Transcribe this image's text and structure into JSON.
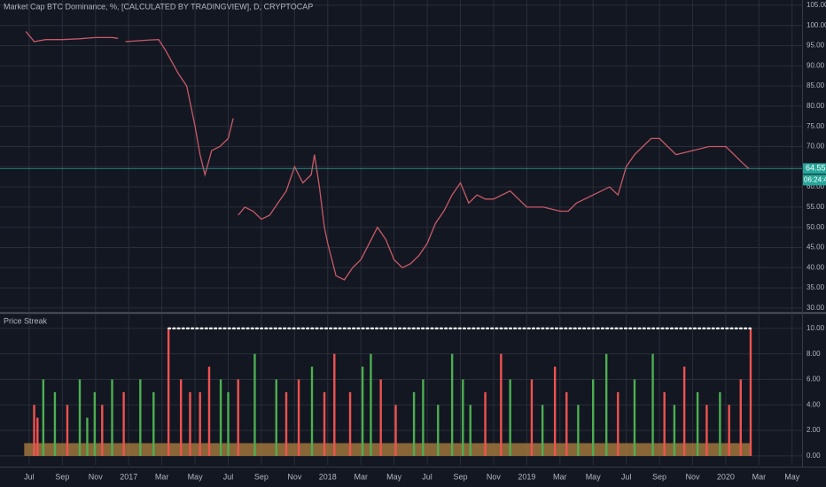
{
  "chart_data": [
    {
      "type": "line",
      "title": "Market Cap BTC Dominance, %, [CALCULATED BY TRADINGVIEW], D, CRYPTOCAP",
      "color": "#c65a66",
      "x": [
        -0.2,
        0.3,
        1,
        2,
        3,
        4,
        5,
        5.35,
        null,
        5.8,
        6.5,
        7.3,
        7.8,
        8.2,
        9,
        9.5,
        10,
        10.3,
        10.6,
        11,
        11.5,
        12,
        12.3,
        null,
        12.6,
        13,
        13.5,
        14,
        14.5,
        15,
        15.5,
        16,
        16.5,
        17,
        17.2,
        17.5,
        17.8,
        18,
        18.5,
        19,
        19.5,
        20,
        20.5,
        21,
        21.5,
        22,
        22.5,
        23,
        23.5,
        24,
        24.5,
        25,
        25.5,
        26,
        26.5,
        27,
        27.5,
        28,
        29,
        30,
        31,
        32,
        32.5,
        33,
        34,
        35,
        35.5,
        36,
        36.5,
        37,
        37.5,
        38,
        38.5,
        39,
        40,
        41,
        42,
        42.5,
        43,
        43.4
      ],
      "values": [
        98.5,
        96,
        96.5,
        96.5,
        96.7,
        97,
        97,
        96.8,
        null,
        96,
        96.2,
        96.4,
        96.5,
        94,
        88,
        85,
        75,
        68,
        63,
        69,
        70,
        72,
        77,
        null,
        53,
        55,
        54,
        52,
        53,
        56,
        59,
        65,
        61,
        63,
        68,
        60,
        50,
        46,
        38,
        37,
        40,
        42,
        46,
        50,
        47,
        42,
        40,
        41,
        43,
        46,
        51,
        54,
        58,
        61,
        56,
        58,
        57,
        57,
        59,
        55,
        55,
        54,
        54,
        56,
        58,
        60,
        58,
        65,
        68,
        70,
        72,
        72,
        70,
        68,
        69,
        70,
        70,
        68,
        66,
        64.5
      ],
      "xlim": [
        -1.76,
        46.6
      ],
      "ylim": [
        29.1,
        106.3
      ],
      "xticks": [
        {
          "value": 0,
          "label": "Jul"
        },
        {
          "value": 2,
          "label": "Sep"
        },
        {
          "value": 4,
          "label": "Nov"
        },
        {
          "value": 6,
          "label": "2017"
        },
        {
          "value": 8,
          "label": "Mar"
        },
        {
          "value": 10,
          "label": "May"
        },
        {
          "value": 12,
          "label": "Jul"
        },
        {
          "value": 14,
          "label": "Sep"
        },
        {
          "value": 16,
          "label": "Nov"
        },
        {
          "value": 18,
          "label": "2018"
        },
        {
          "value": 20,
          "label": "Mar"
        },
        {
          "value": 22,
          "label": "May"
        },
        {
          "value": 24,
          "label": "Jul"
        },
        {
          "value": 26,
          "label": "Sep"
        },
        {
          "value": 28,
          "label": "Nov"
        },
        {
          "value": 30,
          "label": "2019"
        },
        {
          "value": 32,
          "label": "Mar"
        },
        {
          "value": 34,
          "label": "May"
        },
        {
          "value": 36,
          "label": "Jul"
        },
        {
          "value": 38,
          "label": "Sep"
        },
        {
          "value": 40,
          "label": "Nov"
        },
        {
          "value": 42,
          "label": "2020"
        },
        {
          "value": 44,
          "label": "Mar"
        },
        {
          "value": 46,
          "label": "May"
        }
      ],
      "yticks": [
        {
          "value": 30,
          "label": "30.00"
        },
        {
          "value": 35,
          "label": "35.00"
        },
        {
          "value": 40,
          "label": "40.00"
        },
        {
          "value": 45,
          "label": "45.00"
        },
        {
          "value": 50,
          "label": "50.00"
        },
        {
          "value": 55,
          "label": "55.00"
        },
        {
          "value": 60,
          "label": "60.00"
        },
        {
          "value": 65,
          "label": "65.00"
        },
        {
          "value": 70,
          "label": "70.00"
        },
        {
          "value": 75,
          "label": "75.00"
        },
        {
          "value": 80,
          "label": "80.00"
        },
        {
          "value": 85,
          "label": "85.00"
        },
        {
          "value": 90,
          "label": "90.00"
        },
        {
          "value": 95,
          "label": "95.00"
        },
        {
          "value": 100,
          "label": "100.00"
        },
        {
          "value": 105,
          "label": "105.00"
        }
      ],
      "last_price": {
        "value": 64.55,
        "label": "64.55"
      },
      "countdown": "06:24:44",
      "grid": true
    },
    {
      "type": "bar",
      "title": "Price Streak",
      "x": [
        0.3,
        0.5,
        0.85,
        1.55,
        2.3,
        3.05,
        3.5,
        3.95,
        4.4,
        5,
        5.7,
        6.7,
        7.5,
        8.4,
        9.15,
        9.7,
        10.3,
        10.85,
        11.55,
        12,
        12.6,
        13.6,
        14.9,
        15.5,
        16.25,
        17.05,
        17.8,
        18.4,
        19.35,
        20.1,
        20.6,
        21.2,
        22.1,
        23.2,
        23.75,
        24.65,
        25.5,
        26.15,
        26.6,
        27.5,
        28.45,
        29.0,
        30.3,
        30.95,
        31.7,
        32.4,
        33.1,
        34.0,
        34.8,
        35.5,
        36.5,
        37.6,
        38.3,
        38.9,
        39.5,
        40.3,
        40.85,
        41.65,
        42.2,
        42.9,
        43.5
      ],
      "values": [
        4,
        3,
        6,
        5,
        4,
        6,
        3,
        5,
        4,
        6,
        5,
        6,
        5,
        10,
        6,
        5,
        5,
        7,
        6,
        5,
        6,
        8,
        6,
        5,
        6,
        7,
        5,
        8,
        5,
        7,
        8,
        6,
        4,
        5,
        6,
        4,
        8,
        6,
        4,
        5,
        8,
        6,
        6,
        4,
        7,
        5,
        4,
        6,
        8,
        5,
        6,
        8,
        5,
        4,
        7,
        5,
        4,
        5,
        4,
        6,
        10
      ],
      "colors": [
        "#ef5350",
        "#ef5350",
        "#4caf50",
        "#4caf50",
        "#ef5350",
        "#4caf50",
        "#4caf50",
        "#4caf50",
        "#ef5350",
        "#4caf50",
        "#ef5350",
        "#4caf50",
        "#4caf50",
        "#ef5350",
        "#ef5350",
        "#ef5350",
        "#ef5350",
        "#ef5350",
        "#4caf50",
        "#4caf50",
        "#ef5350",
        "#4caf50",
        "#4caf50",
        "#ef5350",
        "#ef5350",
        "#4caf50",
        "#ef5350",
        "#ef5350",
        "#ef5350",
        "#4caf50",
        "#4caf50",
        "#ef5350",
        "#ef5350",
        "#4caf50",
        "#4caf50",
        "#4caf50",
        "#4caf50",
        "#4caf50",
        "#4caf50",
        "#ef5350",
        "#ef5350",
        "#4caf50",
        "#ef5350",
        "#4caf50",
        "#ef5350",
        "#ef5350",
        "#4caf50",
        "#4caf50",
        "#4caf50",
        "#ef5350",
        "#4caf50",
        "#4caf50",
        "#ef5350",
        "#4caf50",
        "#ef5350",
        "#4caf50",
        "#ef5350",
        "#4caf50",
        "#ef5350",
        "#ef5350",
        "#ef5350"
      ],
      "base": 1,
      "base_x": [
        -0.3,
        43.5
      ],
      "base_color": "#a87a3e",
      "max_line": 10,
      "max_line_x": [
        8.4,
        43.5
      ],
      "ylim": [
        -0.7,
        11.1
      ],
      "yticks": [
        {
          "value": 0,
          "label": "0.00"
        },
        {
          "value": 2,
          "label": "2.00"
        },
        {
          "value": 4,
          "label": "4.00"
        },
        {
          "value": 6,
          "label": "6.00"
        },
        {
          "value": 8,
          "label": "8.00"
        },
        {
          "value": 10,
          "label": "10.00"
        }
      ],
      "grid": true
    }
  ]
}
